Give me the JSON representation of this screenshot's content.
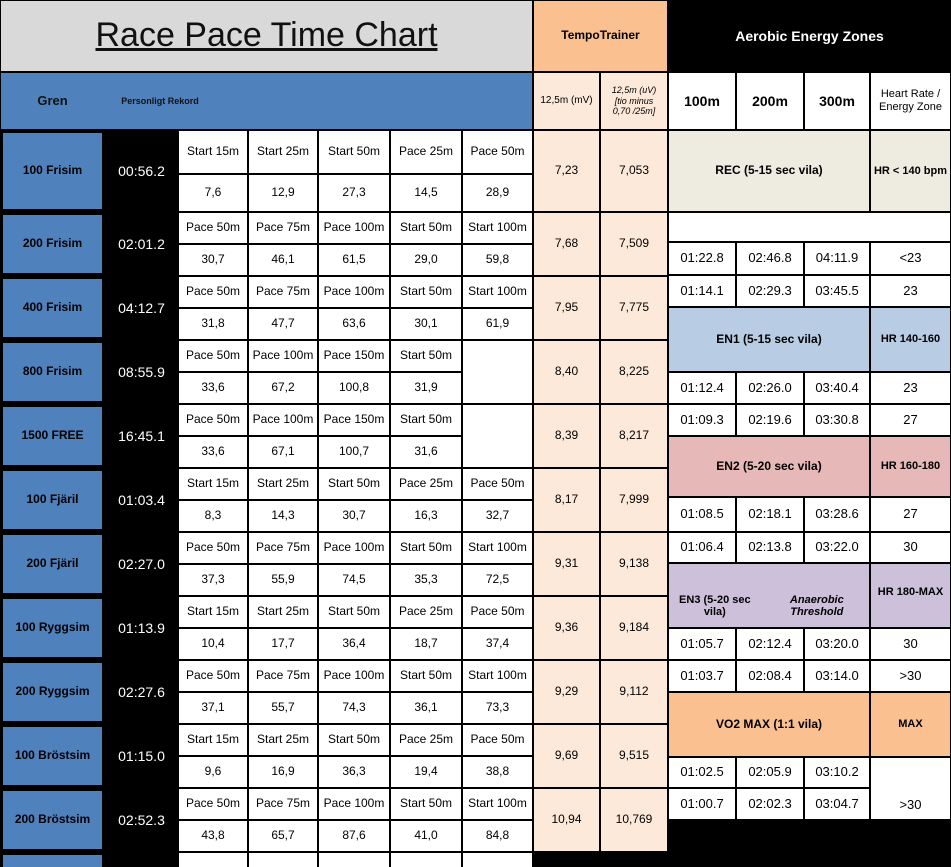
{
  "header": {
    "title": "Race Pace Time Chart",
    "tempo_title": "TempoTrainer",
    "zones_title": "Aerobic Energy Zones",
    "gren": "Gren",
    "rekord": "Personligt Rekord",
    "tempo_mv": "12,5m (mV)",
    "tempo_uv": "12,5m (uV) [tio minus 0,70 /25m]",
    "zone_columns": [
      "100m",
      "200m",
      "300m",
      "Heart Rate / Energy Zone"
    ]
  },
  "events": [
    {
      "name": "100 Frisim",
      "record": "00:56.2",
      "labels": [
        "Start 15m",
        "Start 25m",
        "Start 50m",
        "Pace 25m",
        "Pace 50m"
      ],
      "values": [
        "7,6",
        "12,9",
        "27,3",
        "14,5",
        "28,9"
      ],
      "mv": "7,23",
      "uv": "7,053"
    },
    {
      "name": "200 Frisim",
      "record": "02:01.2",
      "labels": [
        "Pace 50m",
        "Pace 75m",
        "Pace 100m",
        "Start 50m",
        "Start 100m"
      ],
      "values": [
        "30,7",
        "46,1",
        "61,5",
        "29,0",
        "59,8"
      ],
      "mv": "7,68",
      "uv": "7,509"
    },
    {
      "name": "400 Frisim",
      "record": "04:12.7",
      "labels": [
        "Pace 50m",
        "Pace 75m",
        "Pace 100m",
        "Start 50m",
        "Start 100m"
      ],
      "values": [
        "31,8",
        "47,7",
        "63,6",
        "30,1",
        "61,9"
      ],
      "mv": "7,95",
      "uv": "7,775"
    },
    {
      "name": "800 Frisim",
      "record": "08:55.9",
      "labels": [
        "Pace 50m",
        "Pace 100m",
        "Pace 150m",
        "Start 50m"
      ],
      "values": [
        "33,6",
        "67,2",
        "100,8",
        "31,9"
      ],
      "mv": "8,40",
      "uv": "8,225"
    },
    {
      "name": "1500 FREE",
      "record": "16:45.1",
      "labels": [
        "Pace 50m",
        "Pace 100m",
        "Pace 150m",
        "Start 50m"
      ],
      "values": [
        "33,6",
        "67,1",
        "100,7",
        "31,6"
      ],
      "mv": "8,39",
      "uv": "8,217"
    },
    {
      "name": "100 Fjäril",
      "record": "01:03.4",
      "labels": [
        "Start 15m",
        "Start 25m",
        "Start 50m",
        "Pace 25m",
        "Pace 50m"
      ],
      "values": [
        "8,3",
        "14,3",
        "30,7",
        "16,3",
        "32,7"
      ],
      "mv": "8,17",
      "uv": "7,999"
    },
    {
      "name": "200 Fjäril",
      "record": "02:27.0",
      "labels": [
        "Pace 50m",
        "Pace 75m",
        "Pace 100m",
        "Start 50m",
        "Start 100m"
      ],
      "values": [
        "37,3",
        "55,9",
        "74,5",
        "35,3",
        "72,5"
      ],
      "mv": "9,31",
      "uv": "9,138"
    },
    {
      "name": "100 Ryggsim",
      "record": "01:13.9",
      "labels": [
        "Start 15m",
        "Start 25m",
        "Start 50m",
        "Pace 25m",
        "Pace 50m"
      ],
      "values": [
        "10,4",
        "17,7",
        "36,4",
        "18,7",
        "37,4"
      ],
      "mv": "9,36",
      "uv": "9,184"
    },
    {
      "name": "200 Ryggsim",
      "record": "02:27.6",
      "labels": [
        "Pace 50m",
        "Pace 75m",
        "Pace 100m",
        "Start 50m",
        "Start 100m"
      ],
      "values": [
        "37,1",
        "55,7",
        "74,3",
        "36,1",
        "73,3"
      ],
      "mv": "9,29",
      "uv": "9,112"
    },
    {
      "name": "100 Bröstsim",
      "record": "01:15.0",
      "labels": [
        "Start 15m",
        "Start 25m",
        "Start 50m",
        "Pace 25m",
        "Pace 50m"
      ],
      "values": [
        "9,6",
        "16,9",
        "36,3",
        "19,4",
        "38,8"
      ],
      "mv": "9,69",
      "uv": "9,515"
    },
    {
      "name": "200 Bröstsim",
      "record": "02:52.3",
      "labels": [
        "Pace 50m",
        "Pace 75m",
        "Pace 100m",
        "Start 50m",
        "Start 100m"
      ],
      "values": [
        "43,8",
        "65,7",
        "87,6",
        "41,0",
        "84,8"
      ],
      "mv": "10,94",
      "uv": "10,769"
    }
  ],
  "zones": [
    {
      "label": "REC (5-15 sec vila)",
      "hr": "HR < 140 bpm",
      "rows": [
        [
          "01:22.8",
          "02:46.8",
          "04:11.9",
          "<23"
        ],
        [
          "01:14.1",
          "02:29.3",
          "03:45.5",
          "23"
        ]
      ]
    },
    {
      "label": "EN1 (5-15 sec vila)",
      "hr": "HR 140-160",
      "rows": [
        [
          "01:12.4",
          "02:26.0",
          "03:40.4",
          "23"
        ],
        [
          "01:09.3",
          "02:19.6",
          "03:30.8",
          "27"
        ]
      ]
    },
    {
      "label": "EN2 (5-20 sec vila)",
      "hr": "HR 160-180",
      "rows": [
        [
          "01:08.5",
          "02:18.1",
          "03:28.6",
          "27"
        ],
        [
          "01:06.4",
          "02:13.8",
          "03:22.0",
          "30"
        ]
      ]
    },
    {
      "label": "EN3 (5-20 sec vila)",
      "label_italic": "Anaerobic Threshold",
      "hr": "HR 180-MAX",
      "rows": [
        [
          "01:05.7",
          "02:12.4",
          "03:20.0",
          "30"
        ],
        [
          "01:03.7",
          "02:08.4",
          "03:14.0",
          ">30"
        ]
      ]
    },
    {
      "label": "VO2 MAX (1:1 vila)",
      "hr": "MAX",
      "rows": [
        [
          "01:02.5",
          "02:05.9",
          "03:10.2"
        ],
        [
          "01:00.7",
          "02:02.3",
          "03:04.7"
        ]
      ],
      "rows_hr": ">30"
    }
  ]
}
